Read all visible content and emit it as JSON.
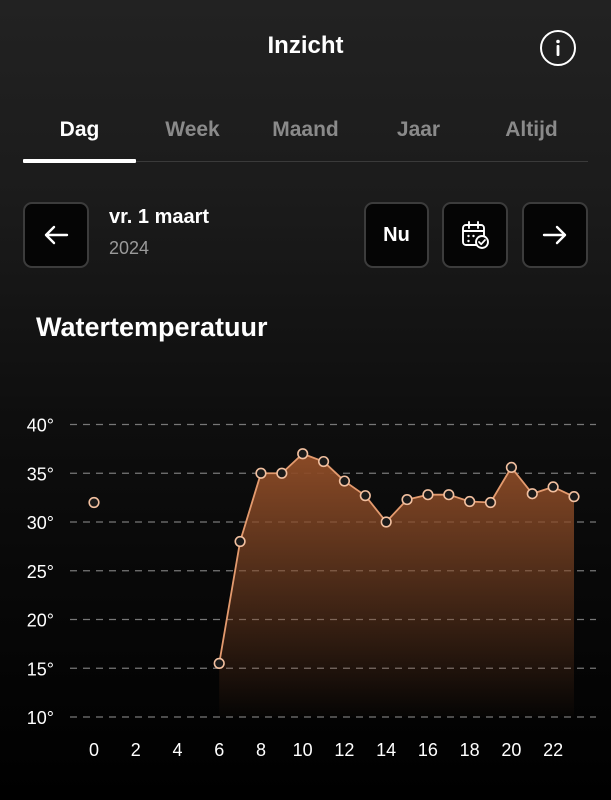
{
  "header": {
    "title": "Inzicht",
    "info_icon": "info-icon"
  },
  "tabs": [
    {
      "label": "Dag",
      "active": true
    },
    {
      "label": "Week",
      "active": false
    },
    {
      "label": "Maand",
      "active": false
    },
    {
      "label": "Jaar",
      "active": false
    },
    {
      "label": "Altijd",
      "active": false
    }
  ],
  "date_nav": {
    "date": "vr. 1 maart",
    "year": "2024",
    "now_label": "Nu",
    "prev_icon": "arrow-left-icon",
    "calendar_icon": "calendar-check-icon",
    "next_icon": "arrow-right-icon"
  },
  "chart_title": "Watertemperatuur",
  "colors": {
    "line": "#e39a6e",
    "fill_top": "#8a4a26",
    "grid": "#777777",
    "background_top": "#222222",
    "background_bottom": "#000000"
  },
  "chart_data": {
    "type": "area",
    "title": "Watertemperatuur",
    "xlabel": "",
    "ylabel": "",
    "xlim": [
      0,
      23
    ],
    "ylim": [
      10,
      40
    ],
    "grid": true,
    "x_ticks": [
      "0",
      "2",
      "4",
      "6",
      "8",
      "10",
      "12",
      "14",
      "16",
      "18",
      "20",
      "22"
    ],
    "y_ticks": [
      "40°",
      "35°",
      "30°",
      "25°",
      "20°",
      "15°",
      "10°"
    ],
    "series": [
      {
        "name": "",
        "points": [
          {
            "x": 0,
            "y": 32
          },
          {
            "x": 6,
            "y": 15.5
          },
          {
            "x": 7,
            "y": 28
          },
          {
            "x": 8,
            "y": 35
          },
          {
            "x": 9,
            "y": 35
          },
          {
            "x": 10,
            "y": 37
          },
          {
            "x": 11,
            "y": 36.2
          },
          {
            "x": 12,
            "y": 34.2
          },
          {
            "x": 13,
            "y": 32.7
          },
          {
            "x": 14,
            "y": 30
          },
          {
            "x": 15,
            "y": 32.3
          },
          {
            "x": 16,
            "y": 32.8
          },
          {
            "x": 17,
            "y": 32.8
          },
          {
            "x": 18,
            "y": 32.1
          },
          {
            "x": 19,
            "y": 32
          },
          {
            "x": 20,
            "y": 35.6
          },
          {
            "x": 21,
            "y": 32.9
          },
          {
            "x": 22,
            "y": 33.6
          },
          {
            "x": 23,
            "y": 32.6
          }
        ]
      }
    ]
  }
}
